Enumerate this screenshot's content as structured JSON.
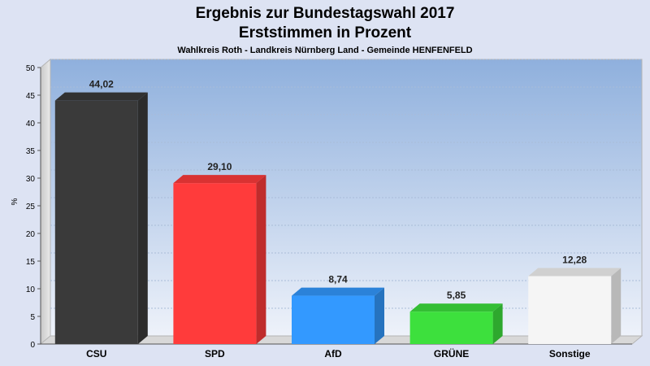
{
  "chart_data": {
    "type": "bar",
    "title": "Ergebnis zur Bundestagswahl 2017",
    "subtitle": "Erststimmen in Prozent",
    "caption": "Wahlkreis Roth - Landkreis Nürnberg Land - Gemeinde HENFENFELD",
    "xlabel": "",
    "ylabel": "%",
    "ylim": [
      0,
      50
    ],
    "yticks": [
      0,
      5,
      10,
      15,
      20,
      25,
      30,
      35,
      40,
      45,
      50
    ],
    "grid": true,
    "categories": [
      "CSU",
      "SPD",
      "AfD",
      "GRÜNE",
      "Sonstige"
    ],
    "values": [
      44.02,
      29.1,
      8.74,
      5.85,
      12.28
    ],
    "value_labels": [
      "44,02",
      "29,10",
      "8,74",
      "5,85",
      "12,28"
    ],
    "colors": [
      "#3a3a3a",
      "#ff3b3b",
      "#3399ff",
      "#3de03d",
      "#f5f5f5"
    ]
  }
}
